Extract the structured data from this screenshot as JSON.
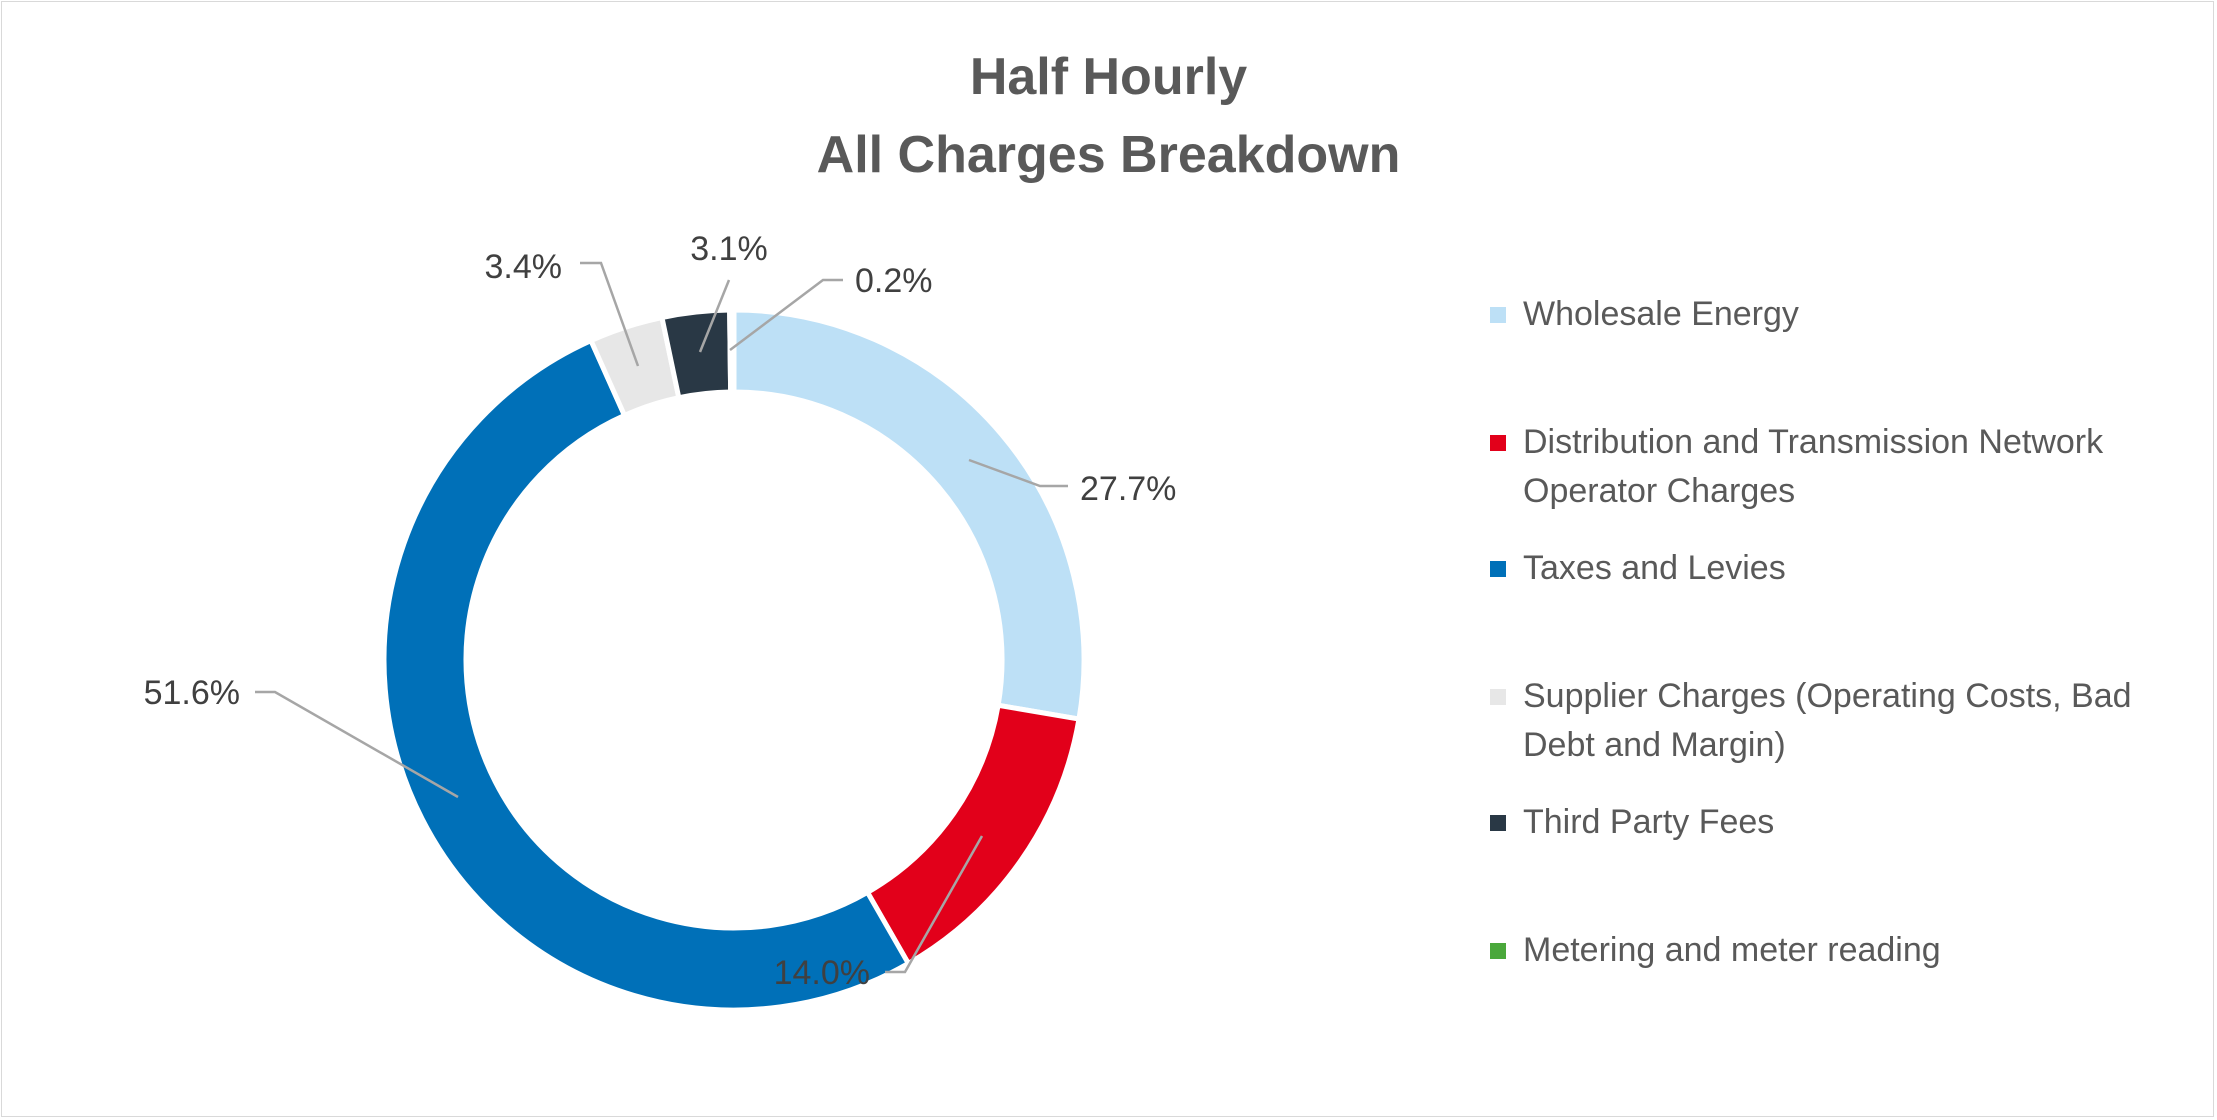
{
  "chart_data": {
    "type": "pie",
    "title": [
      "Half Hourly",
      "All Charges Breakdown"
    ],
    "categories": [
      "Wholesale Energy",
      "Distribution and Transmission Network Operator Charges",
      "Taxes and Levies",
      "Supplier Charges (Operating Costs, Bad Debt and Margin)",
      "Third Party Fees",
      "Metering and meter reading"
    ],
    "legend_lines": [
      [
        "Wholesale Energy"
      ],
      [
        "Distribution and Transmission Network",
        "Operator Charges"
      ],
      [
        "Taxes and Levies"
      ],
      [
        "Supplier Charges (Operating Costs, Bad",
        "Debt and Margin)"
      ],
      [
        "Third Party Fees"
      ],
      [
        "Metering and meter reading"
      ]
    ],
    "values": [
      27.7,
      14.0,
      51.6,
      3.4,
      3.1,
      0.2
    ],
    "data_labels": [
      "27.7%",
      "14.0%",
      "51.6%",
      "3.4%",
      "3.1%",
      "0.2%"
    ],
    "colors": [
      "#bde0f6",
      "#e2001a",
      "#0070b8",
      "#e7e7e7",
      "#293845",
      "#4aa83b"
    ],
    "donut": true,
    "legend_position": "right"
  }
}
